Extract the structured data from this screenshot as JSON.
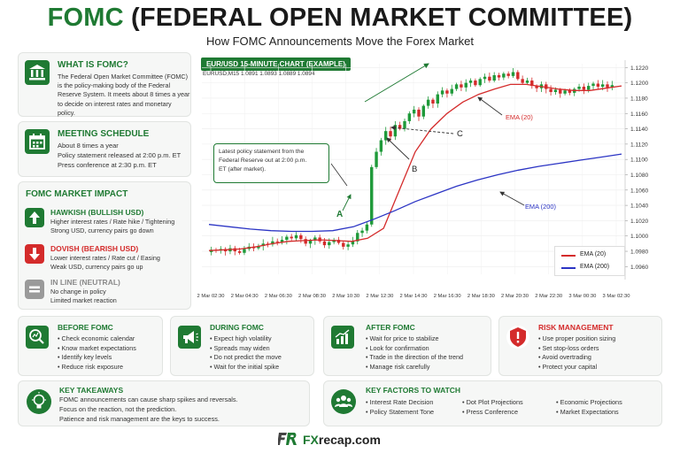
{
  "header": {
    "title_acronym": "FOMC",
    "title_rest": "(FEDERAL OPEN MARKET COMMITTEE)",
    "subtitle": "How FOMC Announcements Move the Forex Market"
  },
  "what_is": {
    "heading": "WHAT IS FOMC?",
    "lines": [
      "The Federal Open Market Committee (FOMC)",
      "is the policy-making body of the Federal",
      "Reserve System. It meets about 8 times a year",
      "to decide on interest rates and monetary policy."
    ],
    "icon": "bank-icon"
  },
  "schedule": {
    "heading": "MEETING SCHEDULE",
    "lines": [
      "About 8 times a year",
      "Policy statement released at 2:00 p.m. ET",
      "Press conference at 2:30 p.m. ET"
    ],
    "icon": "calendar-icon"
  },
  "impact": {
    "heading": "FOMC MARKET IMPACT",
    "hawkish": {
      "title": "HAWKISH (BULLISH USD)",
      "lines": [
        "Higher interest rates / Rate hike / Tightening",
        "Strong USD, currency pairs go down"
      ],
      "icon": "arrow-up-icon",
      "color": "#1f7a33"
    },
    "dovish": {
      "title": "DOVISH (BEARISH USD)",
      "lines": [
        "Lower interest rates / Rate cut / Easing",
        "Weak USD, currency pairs go up"
      ],
      "icon": "arrow-down-icon",
      "color": "#d42b2b"
    },
    "neutral": {
      "title": "IN LINE (NEUTRAL)",
      "lines": [
        "No change in policy",
        "Limited market reaction"
      ],
      "icon": "equals-icon",
      "color": "#9a9a9a"
    }
  },
  "chart": {
    "tag": "EUR/USD 15-MINUTE CHART (EXAMPLE)",
    "ohlc_label": "EURUSD,M15  1.0891  1.0893  1.0889  1.0894",
    "callout": [
      "Latest policy statement from the",
      "Federal Reserve out at 2:00 p.m.",
      "ET (after market)."
    ],
    "label_a": "A",
    "label_b": "B",
    "label_c": "C",
    "ema20_label": "EMA (20)",
    "ema200_label": "EMA (200)",
    "legend": [
      {
        "name": "EMA (20)",
        "color": "#d42b2b"
      },
      {
        "name": "EMA (200)",
        "color": "#2b34c4"
      }
    ]
  },
  "chart_data": {
    "type": "candlestick",
    "y_ticks": [
      "1.1220",
      "1.1200",
      "1.1180",
      "1.1160",
      "1.1140",
      "1.1120",
      "1.1100",
      "1.1080",
      "1.1060",
      "1.1040",
      "1.1020",
      "1.1000",
      "1.0980",
      "1.0960"
    ],
    "ylim": [
      1.095,
      1.1225
    ],
    "x_ticks": [
      "2 Mar 02:30",
      "2 Mar 04:30",
      "2 Mar 06:30",
      "2 Mar 08:30",
      "2 Mar 10:30",
      "2 Mar 12:30",
      "2 Mar 14:30",
      "2 Mar 16:30",
      "2 Mar 18:30",
      "2 Mar 20:30",
      "2 Mar 22:30",
      "3 Mar 00:30",
      "3 Mar 02:30"
    ],
    "close_path": [
      1.0982,
      1.0981,
      1.0983,
      1.098,
      1.0984,
      1.098,
      1.0978,
      1.0983,
      1.0986,
      1.0984,
      1.0987,
      1.099,
      1.0989,
      1.0993,
      1.0992,
      1.0995,
      1.0999,
      1.0997,
      1.1001,
      1.0996,
      1.099,
      1.0994,
      1.0998,
      1.0993,
      1.0988,
      1.0992,
      1.0995,
      1.0991,
      1.0986,
      1.0989,
      1.0993,
      1.1004,
      1.1007,
      1.1015,
      1.109,
      1.111,
      1.1125,
      1.1137,
      1.113,
      1.1145,
      1.114,
      1.115,
      1.116,
      1.1165,
      1.1156,
      1.117,
      1.1178,
      1.1173,
      1.1185,
      1.119,
      1.1186,
      1.1192,
      1.1198,
      1.1194,
      1.12,
      1.1203,
      1.1197,
      1.1205,
      1.1208,
      1.1203,
      1.121,
      1.1207,
      1.1212,
      1.1209,
      1.1214,
      1.1205,
      1.12,
      1.1203,
      1.1196,
      1.1193,
      1.1198,
      1.1192,
      1.1188,
      1.1191,
      1.1186,
      1.119,
      1.1187,
      1.1192,
      1.1195,
      1.1191,
      1.1196,
      1.1199,
      1.1195,
      1.1198,
      1.1194,
      1.1197
    ],
    "series": [
      {
        "name": "EMA (20)",
        "color": "#d42b2b",
        "values": [
          1.0981,
          1.0982,
          1.0983,
          1.0986,
          1.099,
          1.0993,
          1.0994,
          1.0995,
          1.0994,
          1.0993,
          1.0997,
          1.101,
          1.106,
          1.111,
          1.114,
          1.116,
          1.1175,
          1.1185,
          1.1192,
          1.1198,
          1.1198,
          1.1195,
          1.1192,
          1.119,
          1.119,
          1.1193,
          1.1196
        ]
      },
      {
        "name": "EMA (200)",
        "color": "#2b34c4",
        "values": [
          1.1015,
          1.1012,
          1.1009,
          1.1007,
          1.1006,
          1.1006,
          1.1007,
          1.1012,
          1.1022,
          1.1033,
          1.1045,
          1.1055,
          1.1065,
          1.1073,
          1.108,
          1.1086,
          1.1091,
          1.1095,
          1.1099,
          1.1103,
          1.1107
        ]
      }
    ]
  },
  "before": {
    "heading": "BEFORE FOMC",
    "items": [
      "Check economic calendar",
      "Know market expectations",
      "Identify key levels",
      "Reduce risk exposure"
    ],
    "icon": "magnifier-chart-icon"
  },
  "during": {
    "heading": "DURING FOMC",
    "items": [
      "Expect high volatility",
      "Spreads may widen",
      "Do not predict the move",
      "Wait for the initial spike"
    ],
    "icon": "megaphone-icon"
  },
  "after": {
    "heading": "AFTER FOMC",
    "items": [
      "Wait for price to stabilize",
      "Look for confirmation",
      "Trade in the direction of the trend",
      "Manage risk carefully"
    ],
    "icon": "bar-chart-icon"
  },
  "risk": {
    "heading": "RISK MANAGEMENT",
    "items": [
      "Use proper position sizing",
      "Set stop-loss orders",
      "Avoid overtrading",
      "Protect your capital"
    ],
    "icon": "shield-icon"
  },
  "takeaways": {
    "heading": "KEY TAKEAWAYS",
    "lines": [
      "FOMC announcements can cause sharp spikes and reversals.",
      "Focus on the reaction, not the prediction.",
      "Patience and risk management are the keys to success."
    ],
    "icon": "lightbulb-icon"
  },
  "factors": {
    "heading": "KEY FACTORS TO WATCH",
    "items": [
      "Interest Rate Decision",
      "Policy Statement Tone",
      "Dot Plot Projections",
      "Press Conference",
      "Economic Projections",
      "Market Expectations"
    ],
    "icon": "people-icon"
  },
  "footer": {
    "brand_fx": "FX",
    "brand_rest": "recap.com",
    "logo_letters": "FR"
  }
}
